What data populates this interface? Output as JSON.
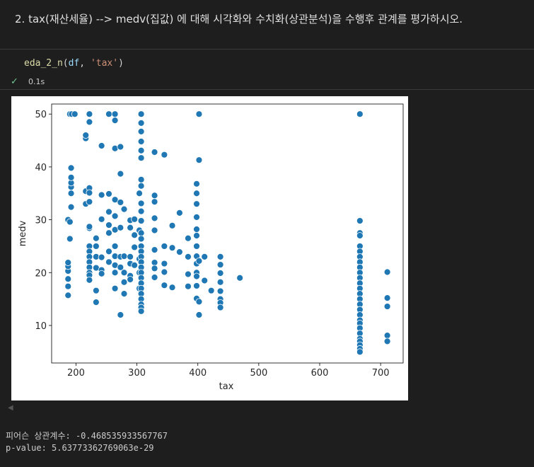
{
  "markdown": "2. tax(재산세율) --> medv(집값) 에 대해 시각화와 수치화(상관분석)을 수행후 관계를 평가하시오.",
  "code": [
    "eda_2_n",
    "(",
    "df",
    ", ",
    "'tax'",
    ")"
  ],
  "exec_time": "0.1s",
  "output": [
    "피어슨 상관계수: -0.468535933567767",
    "p-value: 5.63773362769063e-29"
  ],
  "chart_data": {
    "type": "scatter",
    "xlabel": "tax",
    "ylabel": "medv",
    "color": "#1f77b4",
    "xlim": [
      160,
      737
    ],
    "ylim": [
      2.9,
      51.9
    ],
    "xticks": [
      200,
      300,
      400,
      500,
      600,
      700
    ],
    "yticks": [
      10,
      20,
      30,
      40,
      50
    ],
    "x": [
      187,
      187,
      187,
      187,
      187,
      187,
      187,
      190,
      190,
      190,
      192,
      192,
      192,
      192,
      192,
      192,
      193,
      198,
      216,
      216,
      216,
      216,
      222,
      222,
      222,
      222,
      222,
      222,
      222,
      222,
      222,
      222,
      222,
      222,
      222,
      222,
      222,
      233,
      233,
      233,
      233,
      233,
      233,
      242,
      242,
      242,
      242,
      242,
      242,
      254,
      254,
      254,
      254,
      254,
      254,
      254,
      264,
      264,
      264,
      264,
      264,
      264,
      264,
      264,
      264,
      264,
      264,
      273,
      273,
      273,
      273,
      273,
      273,
      273,
      279,
      279,
      279,
      279,
      279,
      289,
      289,
      289,
      289,
      289,
      289,
      296,
      296,
      296,
      296,
      304,
      304,
      304,
      304,
      304,
      307,
      307,
      307,
      307,
      307,
      307,
      307,
      307,
      307,
      307,
      307,
      307,
      307,
      307,
      307,
      307,
      307,
      307,
      307,
      307,
      307,
      307,
      307,
      307,
      307,
      307,
      307,
      329,
      329,
      329,
      329,
      329,
      329,
      329,
      329,
      329,
      345,
      345,
      345,
      345,
      345,
      358,
      358,
      358,
      370,
      370,
      384,
      384,
      384,
      384,
      398,
      398,
      398,
      398,
      398,
      398,
      398,
      398,
      398,
      398,
      398,
      398,
      398,
      402,
      402,
      402,
      402,
      402,
      411,
      411,
      422,
      437,
      437,
      437,
      437,
      437,
      437,
      437,
      437,
      469,
      666,
      666,
      666,
      666,
      666,
      666,
      666,
      666,
      666,
      666,
      666,
      666,
      666,
      666,
      666,
      666,
      666,
      666,
      666,
      666,
      666,
      666,
      666,
      666,
      666,
      666,
      666,
      711,
      711,
      711,
      711,
      711
    ],
    "values": [
      15.7,
      17.4,
      18.8,
      20.3,
      21.2,
      21.9,
      30.0,
      50,
      29.6,
      26.4,
      32.4,
      36.2,
      37.0,
      38.0,
      39.8,
      35.0,
      50,
      50,
      45.4,
      46.0,
      33.0,
      35.4,
      50,
      48.5,
      36.0,
      35.1,
      33.4,
      28.4,
      28.7,
      25.0,
      24.0,
      23.0,
      22.0,
      21.0,
      20.0,
      19.5,
      18.6,
      14.4,
      16.6,
      20.9,
      23.0,
      25.0,
      26.5,
      44.0,
      34.7,
      30.1,
      22.9,
      20.5,
      19.8,
      50,
      34.9,
      31.5,
      29.0,
      27.5,
      24.0,
      22.0,
      50,
      43.5,
      48.8,
      33.8,
      30.7,
      28.1,
      25.0,
      23.1,
      21.4,
      20.0,
      17.0,
      43.8,
      38.7,
      33.3,
      28.5,
      23.0,
      21.0,
      12.0,
      16.0,
      18.2,
      20.0,
      23.1,
      32.0,
      29.9,
      23.0,
      21.7,
      19.4,
      18.7,
      28.5,
      30.1,
      24.8,
      21.4,
      27.1,
      35.0,
      28.0,
      22.6,
      20.0,
      17.0,
      50,
      48.3,
      46.7,
      44.8,
      43.1,
      41.7,
      37.6,
      36.4,
      33.1,
      31.6,
      29.8,
      27.5,
      26.4,
      25.0,
      24.0,
      23.0,
      22.0,
      21.0,
      20.0,
      19.0,
      18.0,
      17.0,
      16.0,
      15.0,
      14.0,
      13.4,
      12.7,
      42.8,
      34.6,
      33.4,
      30.3,
      28.0,
      24.3,
      21.9,
      20.8,
      19.1,
      25.0,
      21.7,
      20.1,
      17.6,
      42.3,
      28.9,
      24.7,
      17.2,
      31.3,
      23.9,
      26.5,
      23.0,
      19.7,
      17.4,
      36.8,
      35.0,
      33.0,
      30.5,
      28.2,
      27.0,
      25.0,
      23.1,
      21.7,
      20.0,
      19.3,
      17.5,
      15.1,
      50,
      41.3,
      22.2,
      14.5,
      12.0,
      18.5,
      23.0,
      16.6,
      23.0,
      21.5,
      19.9,
      18.2,
      16.5,
      15.0,
      14.3,
      13.4,
      19.0,
      50,
      29.8,
      27.5,
      27.0,
      25.0,
      24.0,
      23.0,
      22.0,
      21.0,
      20.0,
      19.0,
      18.0,
      17.0,
      16.0,
      15.0,
      14.0,
      13.0,
      12.0,
      11.0,
      10.4,
      9.5,
      8.5,
      7.5,
      7.0,
      6.3,
      5.6,
      5.0,
      20.1,
      15.2,
      13.6,
      8.1,
      7.0
    ]
  }
}
